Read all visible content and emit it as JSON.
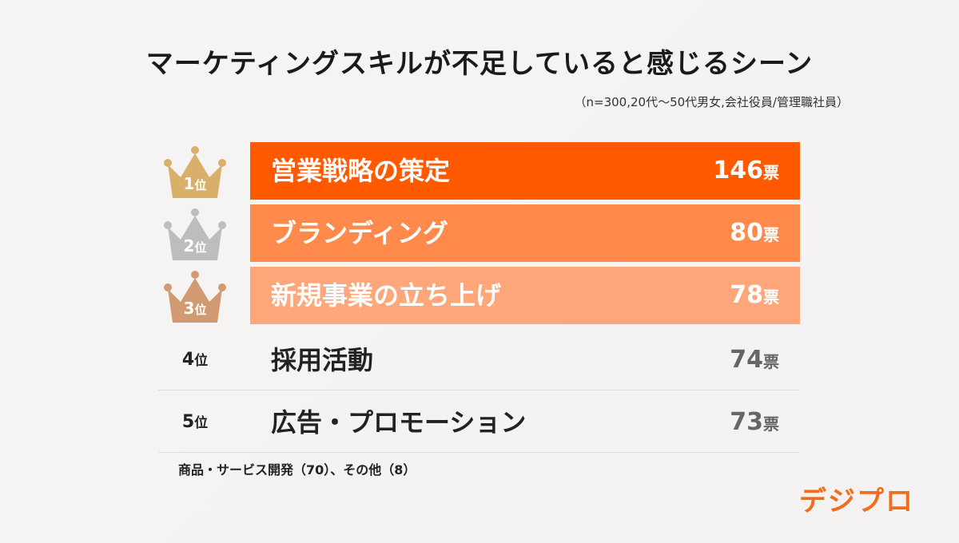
{
  "title": "マーケティングスキルが不足していると感じるシーン",
  "note": "（n=300,20代〜50代男女,会社役員/管理職社員）",
  "others_text": "商品・サービス開発（70）、その他（8）",
  "logo": "デジプロ",
  "vote_unit": "票",
  "rank_suffix": "位",
  "colors": {
    "bar1": "#ff5a00",
    "bar2": "#ff8a4c",
    "bar3": "#ffa77a",
    "gold": "#d8b06a",
    "silver": "#bdbdbd",
    "bronze": "#d29a73",
    "logo": "#f26c1a"
  },
  "chart_data": {
    "type": "bar",
    "title": "マーケティングスキルが不足していると感じるシーン",
    "categories": [
      "営業戦略の策定",
      "ブランディング",
      "新規事業の立ち上げ",
      "採用活動",
      "広告・プロモーション"
    ],
    "ranks": [
      "1",
      "2",
      "3",
      "4",
      "5"
    ],
    "values": [
      146,
      80,
      78,
      74,
      73
    ],
    "unit": "票",
    "others": [
      {
        "name": "商品・サービス開発",
        "value": 70
      },
      {
        "name": "その他",
        "value": 8
      }
    ]
  }
}
